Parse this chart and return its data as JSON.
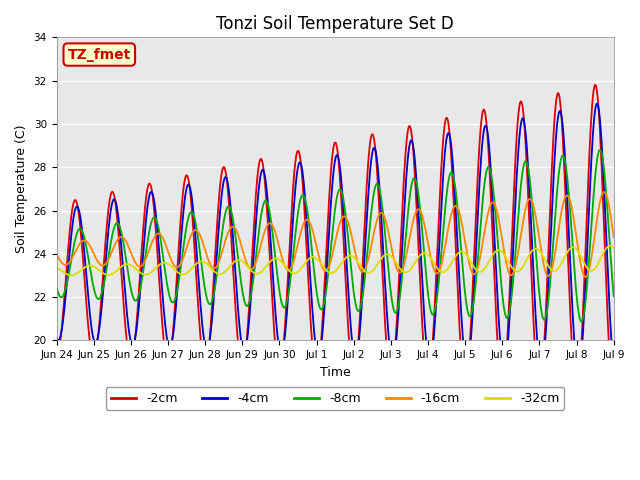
{
  "title": "Tonzi Soil Temperature Set D",
  "xlabel": "Time",
  "ylabel": "Soil Temperature (C)",
  "ylim": [
    20,
    34
  ],
  "annotation_label": "TZ_fmet",
  "annotation_bg": "#ffffcc",
  "annotation_border": "#cc0000",
  "line_colors": {
    "-2cm": "#dd0000",
    "-4cm": "#0000cc",
    "-8cm": "#00aa00",
    "-16cm": "#ff8800",
    "-32cm": "#dddd00"
  },
  "legend_labels": [
    "-2cm",
    "-4cm",
    "-8cm",
    "-16cm",
    "-32cm"
  ],
  "x_tick_labels": [
    "Jun 24",
    "Jun 25",
    "Jun 26",
    "Jun 27",
    "Jun 28",
    "Jun 29",
    "Jun 30",
    "Jul 1",
    "Jul 2",
    "Jul 3",
    "Jul 4",
    "Jul 5",
    "Jul 6",
    "Jul 7",
    "Jul 8",
    "Jul 9"
  ],
  "n_days": 15,
  "pts_per_day": 48,
  "plot_bg": "#e8e8e8",
  "yticks": [
    20,
    22,
    24,
    26,
    28,
    30,
    32,
    34
  ]
}
